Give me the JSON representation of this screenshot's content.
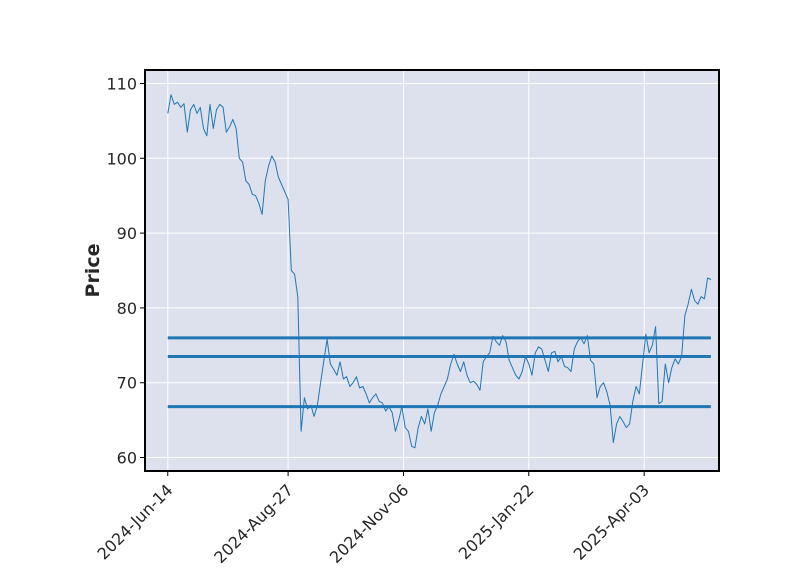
{
  "chart_data": {
    "type": "line",
    "title": "",
    "xlabel": "",
    "ylabel": "Price",
    "ylim": [
      58.2,
      111.8
    ],
    "xlim": [
      "2024-05-31",
      "2025-05-19"
    ],
    "grid": true,
    "legend": "none",
    "background": "#dde1ee",
    "line_color": "#1f77b4",
    "x_ticks": [
      "2024-Jun-14",
      "2024-Aug-27",
      "2024-Nov-06",
      "2025-Jan-22",
      "2025-Apr-03"
    ],
    "x_tick_dates": [
      "2024-06-14",
      "2024-08-27",
      "2024-11-06",
      "2025-01-22",
      "2025-04-03"
    ],
    "y_ticks": [
      60,
      70,
      80,
      90,
      100,
      110
    ],
    "hlines": [
      {
        "y": 76.0,
        "from": "2024-06-14",
        "to": "2025-05-14"
      },
      {
        "y": 73.5,
        "from": "2024-06-14",
        "to": "2025-05-14"
      },
      {
        "y": 66.8,
        "from": "2024-06-14",
        "to": "2025-05-14"
      }
    ],
    "series": [
      {
        "x": [
          "2024-06-14",
          "2024-06-16",
          "2024-06-18",
          "2024-06-20",
          "2024-06-22",
          "2024-06-24",
          "2024-06-26",
          "2024-06-28",
          "2024-06-30",
          "2024-07-02",
          "2024-07-04",
          "2024-07-06",
          "2024-07-08",
          "2024-07-10",
          "2024-07-12",
          "2024-07-14",
          "2024-07-16",
          "2024-07-18",
          "2024-07-20",
          "2024-07-22",
          "2024-07-24",
          "2024-07-26",
          "2024-07-28",
          "2024-07-30",
          "2024-08-01",
          "2024-08-03",
          "2024-08-05",
          "2024-08-07",
          "2024-08-09",
          "2024-08-11",
          "2024-08-13",
          "2024-08-15",
          "2024-08-17",
          "2024-08-19",
          "2024-08-21",
          "2024-08-23",
          "2024-08-25",
          "2024-08-27",
          "2024-08-29",
          "2024-08-31",
          "2024-09-02",
          "2024-09-04",
          "2024-09-06",
          "2024-09-08",
          "2024-09-10",
          "2024-09-12",
          "2024-09-14",
          "2024-09-16",
          "2024-09-18",
          "2024-09-20",
          "2024-09-22",
          "2024-09-24",
          "2024-09-26",
          "2024-09-28",
          "2024-09-30",
          "2024-10-02",
          "2024-10-04",
          "2024-10-06",
          "2024-10-08",
          "2024-10-10",
          "2024-10-12",
          "2024-10-14",
          "2024-10-16",
          "2024-10-18",
          "2024-10-20",
          "2024-10-22",
          "2024-10-24",
          "2024-10-26",
          "2024-10-28",
          "2024-10-30",
          "2024-11-01",
          "2024-11-03",
          "2024-11-05",
          "2024-11-07",
          "2024-11-09",
          "2024-11-11",
          "2024-11-13",
          "2024-11-15",
          "2024-11-17",
          "2024-11-19",
          "2024-11-21",
          "2024-11-23",
          "2024-11-25",
          "2024-11-27",
          "2024-11-29",
          "2024-12-01",
          "2024-12-03",
          "2024-12-05",
          "2024-12-07",
          "2024-12-09",
          "2024-12-11",
          "2024-12-13",
          "2024-12-15",
          "2024-12-17",
          "2024-12-19",
          "2024-12-21",
          "2024-12-23",
          "2024-12-25",
          "2024-12-27",
          "2024-12-29",
          "2024-12-31",
          "2025-01-02",
          "2025-01-04",
          "2025-01-06",
          "2025-01-08",
          "2025-01-10",
          "2025-01-12",
          "2025-01-14",
          "2025-01-16",
          "2025-01-18",
          "2025-01-20",
          "2025-01-22",
          "2025-01-24",
          "2025-01-26",
          "2025-01-28",
          "2025-01-30",
          "2025-02-01",
          "2025-02-03",
          "2025-02-05",
          "2025-02-07",
          "2025-02-09",
          "2025-02-11",
          "2025-02-13",
          "2025-02-15",
          "2025-02-17",
          "2025-02-19",
          "2025-02-21",
          "2025-02-23",
          "2025-02-25",
          "2025-02-27",
          "2025-03-01",
          "2025-03-03",
          "2025-03-05",
          "2025-03-07",
          "2025-03-09",
          "2025-03-11",
          "2025-03-13",
          "2025-03-15",
          "2025-03-17",
          "2025-03-19",
          "2025-03-21",
          "2025-03-23",
          "2025-03-25",
          "2025-03-27",
          "2025-03-29",
          "2025-03-31",
          "2025-04-02",
          "2025-04-04",
          "2025-04-06",
          "2025-04-08",
          "2025-04-10",
          "2025-04-12",
          "2025-04-14",
          "2025-04-16",
          "2025-04-18",
          "2025-04-20",
          "2025-04-22",
          "2025-04-24",
          "2025-04-26",
          "2025-04-28",
          "2025-04-30",
          "2025-05-02",
          "2025-05-04",
          "2025-05-06",
          "2025-05-08",
          "2025-05-10",
          "2025-05-12",
          "2025-05-14"
        ],
        "y": [
          106.0,
          108.5,
          107.2,
          107.5,
          106.8,
          107.3,
          103.5,
          106.5,
          107.2,
          106.0,
          106.8,
          104.0,
          103.0,
          107.2,
          104.0,
          106.5,
          107.2,
          106.8,
          103.5,
          104.2,
          105.2,
          104.0,
          100.0,
          99.5,
          97.0,
          96.5,
          95.2,
          95.0,
          94.0,
          92.5,
          97.0,
          99.0,
          100.3,
          99.5,
          97.5,
          96.5,
          95.5,
          94.5,
          85.0,
          84.5,
          81.5,
          63.5,
          68.0,
          66.5,
          67.0,
          65.5,
          67.0,
          70.0,
          73.0,
          75.8,
          72.5,
          71.8,
          71.0,
          72.8,
          70.5,
          70.8,
          69.5,
          70.0,
          70.8,
          69.3,
          69.5,
          68.5,
          67.3,
          68.0,
          68.5,
          67.5,
          67.3,
          66.2,
          66.8,
          66.0,
          63.5,
          65.0,
          66.8,
          64.0,
          63.5,
          61.5,
          61.3,
          64.0,
          65.5,
          64.5,
          66.5,
          63.5,
          66.0,
          67.0,
          68.5,
          69.5,
          70.5,
          72.5,
          73.8,
          72.5,
          71.5,
          72.8,
          71.0,
          70.0,
          70.2,
          69.8,
          69.0,
          72.8,
          73.5,
          74.0,
          76.2,
          75.5,
          75.0,
          76.3,
          75.5,
          73.0,
          72.0,
          71.0,
          70.5,
          71.5,
          73.5,
          72.5,
          71.0,
          74.0,
          74.8,
          74.5,
          73.0,
          71.5,
          74.0,
          74.2,
          72.8,
          73.5,
          72.2,
          72.0,
          71.5,
          74.5,
          75.5,
          76.0,
          75.2,
          76.3,
          73.0,
          72.5,
          68.0,
          69.5,
          70.0,
          68.8,
          67.0,
          62.0,
          64.5,
          65.5,
          64.8,
          64.0,
          64.5,
          67.5,
          69.5,
          68.5,
          72.5,
          76.5,
          74.0,
          75.0,
          77.5,
          67.2,
          67.5,
          72.5,
          70.0,
          72.0,
          73.2,
          72.5,
          73.5,
          79.0,
          80.5,
          82.5,
          81.0,
          80.5,
          81.5,
          81.2,
          84.0,
          83.8
        ]
      }
    ]
  }
}
